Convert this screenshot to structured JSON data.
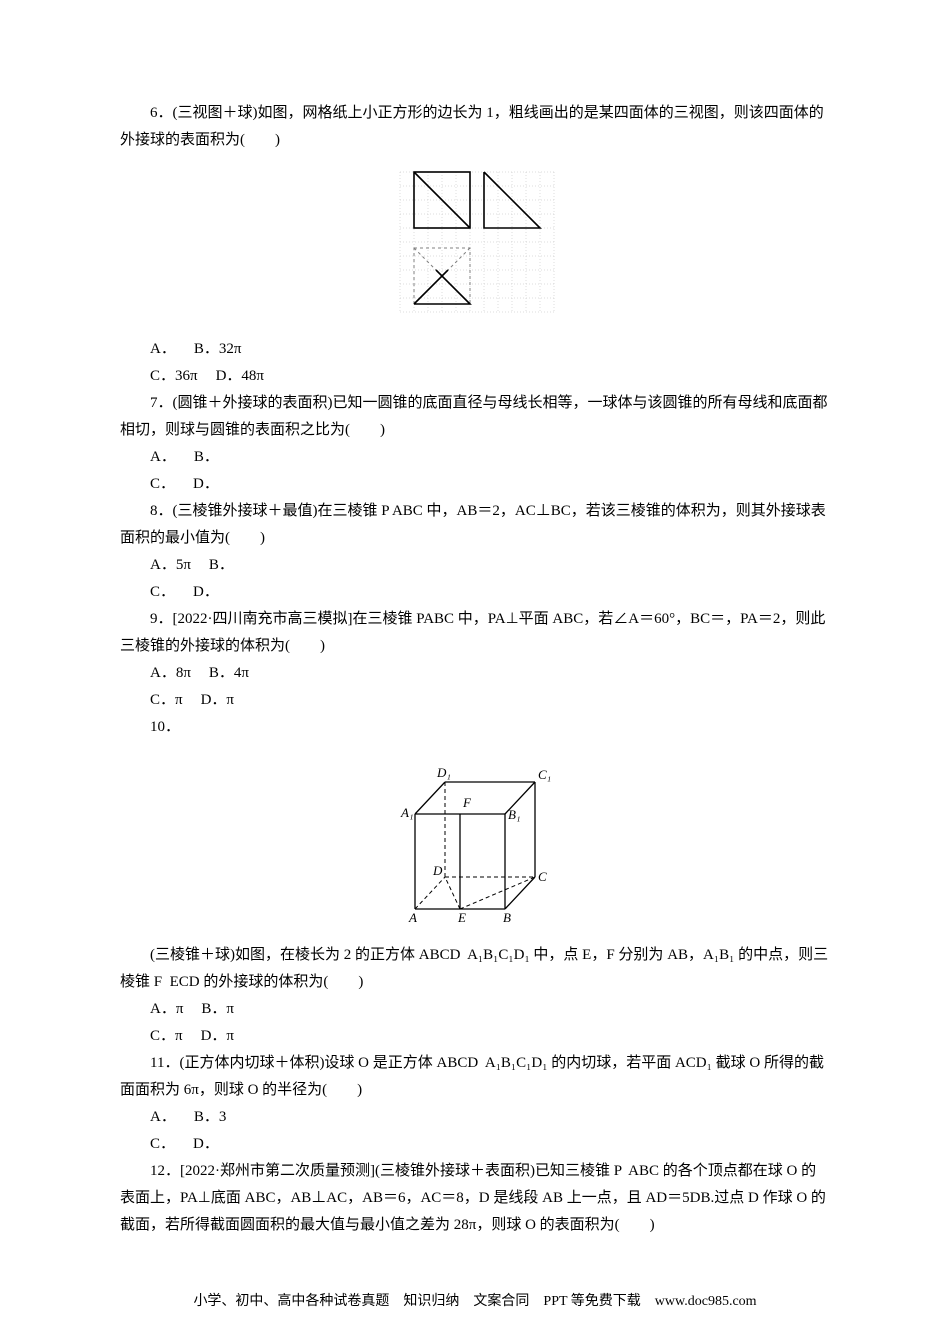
{
  "q6": {
    "text": "6．(三视图＋球)如图，网格纸上小正方形的边长为 1，粗线画出的是某四面体的三视图，则该四面体的外接球的表面积为(　　)",
    "optA": "A．",
    "optB": "B．32π",
    "optC": "C．36π",
    "optD": "D．48π"
  },
  "q7": {
    "text": "7．(圆锥＋外接球的表面积)已知一圆锥的底面直径与母线长相等，一球体与该圆锥的所有母线和底面都相切，则球与圆锥的表面积之比为(　　)",
    "optA": "A．",
    "optB": "B．",
    "optC": "C．",
    "optD": "D．"
  },
  "q8": {
    "text": "8．(三棱锥外接球＋最值)在三棱锥 P ­ABC 中，AB＝2，AC⊥BC，若该三棱锥的体积为，则其外接球表面积的最小值为(　　)",
    "optA": "A．5π",
    "optB": "B．",
    "optC": "C．",
    "optD": "D．"
  },
  "q9": {
    "text": "9．[2022·四川南充市高三模拟]在三棱锥 PABC 中，PA⊥平面 ABC，若∠A＝60°，BC＝，PA＝2，则此三棱锥的外接球的体积为(　　)",
    "optA": "A．8π",
    "optB": "B．4π",
    "optC": "C．π",
    "optD": "D．π"
  },
  "q10": {
    "num": "10．",
    "text": "(三棱锥＋球)如图，在棱长为 2 的正方体 ABCD ­ A₁B₁C₁D₁ 中，点 E，F 分别为 AB，A₁B₁ 的中点，则三棱锥 F ­ ECD 的外接球的体积为(　　)",
    "optA": "A．π",
    "optB": "B．π",
    "optC": "C．π",
    "optD": "D．π",
    "labels": {
      "A": "A",
      "B": "B",
      "C": "C",
      "D": "D",
      "E": "E",
      "F": "F",
      "A1": "A₁",
      "B1": "B₁",
      "C1": "C₁",
      "D1": "D₁"
    }
  },
  "q11": {
    "text": "11．(正方体内切球＋体积)设球 O 是正方体 ABCD ­ A₁B₁C₁D₁ 的内切球，若平面 ACD₁ 截球 O 所得的截面面积为 6π，则球 O 的半径为(　　)",
    "optA": "A．",
    "optB": "B．3",
    "optC": "C．",
    "optD": "D．"
  },
  "q12": {
    "text": "12．[2022·郑州市第二次质量预测](三棱锥外接球＋表面积)已知三棱锥 P ­ ABC 的各个顶点都在球 O 的表面上，PA⊥底面 ABC，AB⊥AC，AB＝6，AC＝8，D 是线段 AB 上一点，且 AD＝5DB.过点 D 作球 O 的截面，若所得截面圆面积的最大值与最小值之差为 28π，则球 O 的表面积为(　　)"
  },
  "footer": "小学、初中、高中各种试卷真题　知识归纳　文案合同　PPT 等免费下载　www.doc985.com",
  "fig6": {
    "grid_color": "#bdbdbd",
    "dash_color": "#808080",
    "line_color": "#000000",
    "bg": "#ffffff",
    "cell": 14,
    "cols": 11,
    "rows": 10
  },
  "fig10": {
    "line_color": "#000000",
    "bg": "#ffffff",
    "font_size": 13
  }
}
